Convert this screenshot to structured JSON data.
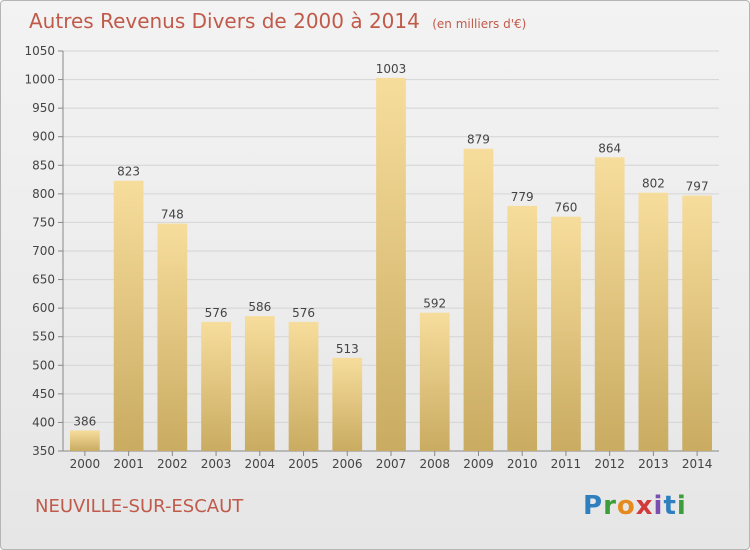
{
  "header": {
    "title": "Autres Revenus Divers de 2000 à 2014",
    "subtitle": "(en milliers d'€)"
  },
  "footer": {
    "city": "NEUVILLE-SUR-ESCAUT",
    "logo": "Proxiti"
  },
  "colors": {
    "title": "#c05a4a",
    "bar_top": "#f7dd9c",
    "bar_bottom": "#c9ab61"
  },
  "chart_data": {
    "type": "bar",
    "title": "Autres Revenus Divers de 2000 à 2014",
    "subtitle": "(en milliers d'€)",
    "categories": [
      "2000",
      "2001",
      "2002",
      "2003",
      "2004",
      "2005",
      "2006",
      "2007",
      "2008",
      "2009",
      "2010",
      "2011",
      "2012",
      "2013",
      "2014"
    ],
    "values": [
      386,
      823,
      748,
      576,
      586,
      576,
      513,
      1003,
      592,
      879,
      779,
      760,
      864,
      802,
      797
    ],
    "xlabel": "",
    "ylabel": "",
    "ylim": [
      350,
      1050
    ],
    "yticks": [
      350,
      400,
      450,
      500,
      550,
      600,
      650,
      700,
      750,
      800,
      850,
      900,
      950,
      1000,
      1050
    ],
    "grid": true,
    "data_labels": true
  }
}
